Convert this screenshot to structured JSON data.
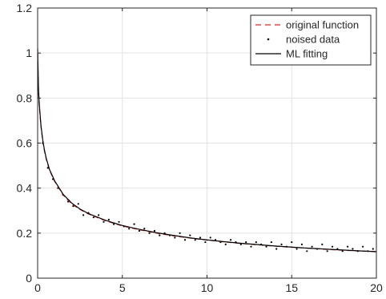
{
  "chart_data": {
    "type": "line",
    "title": "",
    "xlabel": "",
    "ylabel": "",
    "xlim": [
      0,
      20
    ],
    "ylim": [
      0,
      1.2
    ],
    "grid": true,
    "legend_position": "top-right",
    "x_ticks": [
      0,
      5,
      10,
      15,
      20
    ],
    "y_ticks": [
      0,
      0.2,
      0.4,
      0.6,
      0.8,
      1,
      1.2
    ],
    "x_tick_labels": [
      "0",
      "5",
      "10",
      "15",
      "20"
    ],
    "y_tick_labels": [
      "0",
      "0.2",
      "0.4",
      "0.6",
      "0.8",
      "1",
      "1.2"
    ],
    "series": [
      {
        "name": "original function",
        "style": "dashed",
        "color": "#d62728",
        "x": [
          0,
          0.05,
          0.1,
          0.2,
          0.3,
          0.4,
          0.5,
          0.7,
          1,
          1.5,
          2,
          2.5,
          3,
          4,
          5,
          6,
          7,
          8,
          9,
          10,
          11,
          12,
          13,
          14,
          15,
          16,
          17,
          18,
          19,
          20
        ],
        "y": [
          1.0,
          0.83,
          0.76,
          0.67,
          0.61,
          0.565,
          0.53,
          0.48,
          0.43,
          0.37,
          0.33,
          0.305,
          0.285,
          0.255,
          0.232,
          0.215,
          0.2,
          0.188,
          0.178,
          0.169,
          0.161,
          0.154,
          0.148,
          0.142,
          0.137,
          0.133,
          0.128,
          0.124,
          0.121,
          0.117
        ]
      },
      {
        "name": "noised data",
        "style": "points",
        "color": "#000000",
        "x": [
          0.3,
          0.6,
          0.9,
          1.2,
          1.5,
          1.8,
          2.1,
          2.4,
          2.7,
          3.0,
          3.3,
          3.6,
          3.9,
          4.2,
          4.5,
          4.8,
          5.1,
          5.4,
          5.7,
          6.0,
          6.3,
          6.6,
          6.9,
          7.2,
          7.5,
          7.8,
          8.1,
          8.4,
          8.7,
          9.0,
          9.3,
          9.6,
          9.9,
          10.2,
          10.5,
          10.8,
          11.1,
          11.4,
          11.7,
          12.0,
          12.3,
          12.6,
          12.9,
          13.2,
          13.5,
          13.8,
          14.1,
          14.4,
          14.7,
          15.0,
          15.3,
          15.6,
          15.9,
          16.2,
          16.5,
          16.8,
          17.1,
          17.4,
          17.7,
          18.0,
          18.3,
          18.6,
          18.9,
          19.2,
          19.5,
          19.8
        ],
        "y": [
          0.6,
          0.49,
          0.44,
          0.4,
          0.37,
          0.34,
          0.32,
          0.33,
          0.28,
          0.29,
          0.27,
          0.28,
          0.25,
          0.26,
          0.24,
          0.25,
          0.23,
          0.22,
          0.24,
          0.21,
          0.22,
          0.2,
          0.21,
          0.19,
          0.2,
          0.19,
          0.18,
          0.2,
          0.17,
          0.19,
          0.17,
          0.18,
          0.16,
          0.18,
          0.17,
          0.16,
          0.15,
          0.17,
          0.16,
          0.15,
          0.16,
          0.14,
          0.16,
          0.15,
          0.14,
          0.16,
          0.13,
          0.15,
          0.14,
          0.16,
          0.13,
          0.15,
          0.12,
          0.14,
          0.13,
          0.15,
          0.12,
          0.14,
          0.13,
          0.12,
          0.14,
          0.13,
          0.12,
          0.14,
          0.12,
          0.13
        ]
      },
      {
        "name": "ML fitting",
        "style": "solid",
        "color": "#000000",
        "x": [
          0,
          0.05,
          0.1,
          0.2,
          0.3,
          0.4,
          0.5,
          0.7,
          1,
          1.5,
          2,
          2.5,
          3,
          4,
          5,
          6,
          7,
          8,
          9,
          10,
          11,
          12,
          13,
          14,
          15,
          16,
          17,
          18,
          19,
          20
        ],
        "y": [
          1.02,
          0.84,
          0.77,
          0.675,
          0.615,
          0.57,
          0.535,
          0.483,
          0.433,
          0.373,
          0.334,
          0.307,
          0.287,
          0.257,
          0.234,
          0.217,
          0.202,
          0.19,
          0.179,
          0.17,
          0.162,
          0.155,
          0.149,
          0.143,
          0.138,
          0.133,
          0.129,
          0.125,
          0.121,
          0.118
        ]
      }
    ]
  }
}
